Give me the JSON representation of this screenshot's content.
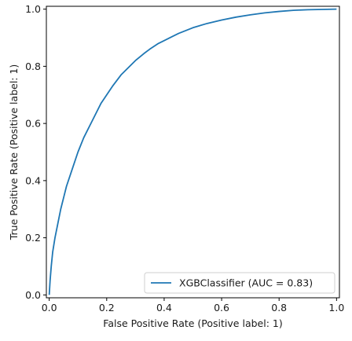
{
  "chart_data": {
    "type": "line",
    "title": "",
    "xlabel": "False Positive Rate (Positive label: 1)",
    "ylabel": "True Positive Rate (Positive label: 1)",
    "xlim": [
      -0.01,
      1.01
    ],
    "ylim": [
      -0.01,
      1.01
    ],
    "x_ticks": [
      0.0,
      0.2,
      0.4,
      0.6,
      0.8,
      1.0
    ],
    "x_tick_labels": [
      "0.0",
      "0.2",
      "0.4",
      "0.6",
      "0.8",
      "1.0"
    ],
    "y_ticks": [
      0.0,
      0.2,
      0.4,
      0.6,
      0.8,
      1.0
    ],
    "y_tick_labels": [
      "0.0",
      "0.2",
      "0.4",
      "0.6",
      "0.8",
      "1.0"
    ],
    "grid": false,
    "legend_position": "lower-right",
    "series": [
      {
        "name": "XGBClassifier (AUC = 0.83)",
        "color": "#1f77b4",
        "x": [
          0.0,
          0.003,
          0.007,
          0.012,
          0.02,
          0.03,
          0.04,
          0.05,
          0.06,
          0.08,
          0.1,
          0.12,
          0.15,
          0.18,
          0.2,
          0.22,
          0.25,
          0.28,
          0.3,
          0.33,
          0.35,
          0.38,
          0.4,
          0.43,
          0.45,
          0.5,
          0.55,
          0.6,
          0.65,
          0.7,
          0.75,
          0.8,
          0.85,
          0.9,
          0.95,
          1.0
        ],
        "y": [
          0.0,
          0.05,
          0.1,
          0.15,
          0.2,
          0.25,
          0.3,
          0.34,
          0.38,
          0.44,
          0.5,
          0.55,
          0.61,
          0.67,
          0.7,
          0.73,
          0.77,
          0.8,
          0.82,
          0.845,
          0.86,
          0.88,
          0.89,
          0.905,
          0.915,
          0.935,
          0.95,
          0.962,
          0.972,
          0.98,
          0.987,
          0.992,
          0.996,
          0.998,
          0.999,
          1.0
        ]
      }
    ]
  }
}
